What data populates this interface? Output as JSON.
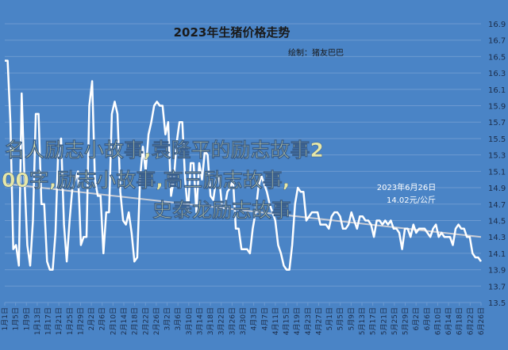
{
  "chart_data": {
    "type": "line",
    "title": "2023年生猪价格走势",
    "subtitle": "绘制：猪友巴巴",
    "xlabel": "",
    "ylabel": "",
    "ylim": [
      13.5,
      16.9
    ],
    "yticks": [
      "16.9",
      "16.7",
      "16.5",
      "16.3",
      "16.1",
      "15.9",
      "15.7",
      "15.5",
      "15.3",
      "15.1",
      "14.9",
      "14.7",
      "14.5",
      "14.3",
      "14.1",
      "13.9",
      "13.7",
      "13.5"
    ],
    "xticks": [
      "1月1日",
      "1月5日",
      "1月9日",
      "1月13日",
      "1月17日",
      "1月21日",
      "1月25日",
      "1月29日",
      "2月2日",
      "2月6日",
      "2月10日",
      "2月14日",
      "2月18日",
      "2月22日",
      "2月26日",
      "3月2日",
      "3月6日",
      "3月10日",
      "3月14日",
      "3月18日",
      "3月22日",
      "3月26日",
      "3月30日",
      "4月3日",
      "4月7日",
      "4月11日",
      "4月15日",
      "4月19日",
      "4月23日",
      "4月27日",
      "5月1日",
      "5月5日",
      "5月9日",
      "5月13日",
      "5月17日",
      "5月21日",
      "5月25日",
      "5月29日",
      "6月2日",
      "6月6日",
      "6月10日",
      "6月14日",
      "6月18日",
      "6月22日",
      "6月26日"
    ],
    "grid": true,
    "series": [
      {
        "values": [
          16.45,
          16.45,
          15.7,
          14.15,
          14.2,
          13.95,
          16.05,
          15.0,
          14.2,
          13.95,
          14.5,
          15.8,
          15.8,
          14.7,
          14.7,
          14.0,
          13.9,
          13.9,
          14.35,
          15.4,
          15.5,
          14.45,
          14.0,
          14.5,
          14.9,
          15.0,
          15.1,
          14.2,
          14.3,
          14.3,
          15.9,
          16.2,
          15.0,
          14.8,
          14.8,
          14.1,
          14.6,
          14.6,
          15.8,
          15.95,
          15.8,
          14.85,
          14.5,
          14.45,
          14.6,
          14.35,
          14.0,
          14.05,
          15.0,
          15.4,
          15.1,
          15.55,
          15.7,
          15.9,
          15.95,
          15.9,
          15.9,
          15.55,
          15.7,
          14.8,
          15.0,
          15.45,
          15.7,
          15.7,
          15.0,
          14.6,
          15.2,
          15.2,
          14.6,
          15.2,
          15.0,
          15.35,
          15.3,
          14.8,
          14.75,
          15.0,
          15.05,
          14.7,
          14.65,
          14.85,
          14.9,
          15.0,
          14.4,
          14.4,
          14.15,
          14.15,
          14.15,
          14.1,
          14.4,
          14.6,
          14.9,
          15.05,
          14.95,
          14.85,
          14.7,
          14.6,
          14.5,
          14.2,
          14.1,
          13.95,
          13.9,
          13.9,
          14.2,
          14.7,
          14.9,
          14.85,
          14.85,
          14.5,
          14.55,
          14.6,
          14.6,
          14.6,
          14.45,
          14.45,
          14.45,
          14.4,
          14.55,
          14.6,
          14.6,
          14.55,
          14.4,
          14.4,
          14.45,
          14.6,
          14.5,
          14.4,
          14.55,
          14.55,
          14.5,
          14.5,
          14.45,
          14.3,
          14.5,
          14.5,
          14.45,
          14.5,
          14.45,
          14.5,
          14.4,
          14.4,
          14.35,
          14.15,
          14.4,
          14.4,
          14.3,
          14.45,
          14.35,
          14.4,
          14.4,
          14.4,
          14.35,
          14.3,
          14.4,
          14.45,
          14.3,
          14.35,
          14.3,
          14.3,
          14.3,
          14.2,
          14.4,
          14.45,
          14.4,
          14.4,
          14.3,
          14.3,
          14.1,
          14.05,
          14.05,
          14.0
        ]
      },
      {
        "name": "trend",
        "values": [
          14.95,
          14.3
        ]
      }
    ],
    "annotations": [
      "2023年6月26日",
      "14.02元/公斤"
    ],
    "colors": {
      "background": "#4a84c6",
      "line": "#ffffff",
      "grid": "#6d9ad0",
      "trend": "#c9cdd6",
      "overlay_text": "#e6e7a8"
    }
  },
  "overlay_text": {
    "line1": "名人励志小故事,袁隆平的励志故事2",
    "line2": "00字,励志小故事,高三励志故事,",
    "line3": "史泰龙励志故事"
  }
}
